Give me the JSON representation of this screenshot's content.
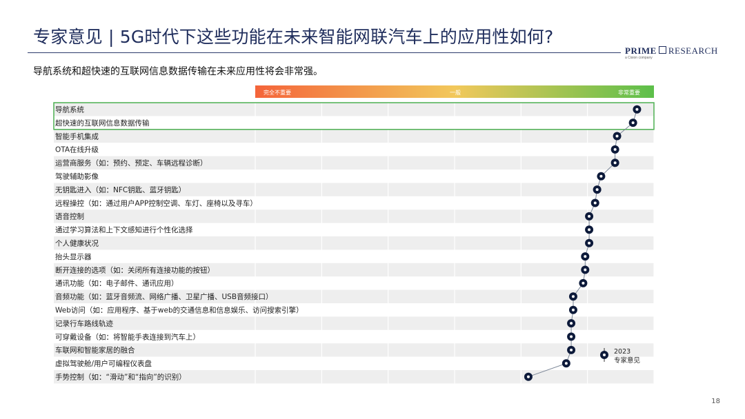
{
  "header": {
    "title": "专家意见 | 5G时代下这些功能在未来智能网联汽车上的应用性如何?",
    "subtitle": "导航系统和超快速的互联网信息数据传输在未来应用性将会非常强。",
    "brand_main_left": "PRIME",
    "brand_main_right": "RESEARCH",
    "brand_sub": "a Cision company",
    "page_number": "18"
  },
  "chart_data": {
    "type": "scatter",
    "scale_labels": [
      "完全不重要",
      "一般",
      "非常重要"
    ],
    "xlim": [
      1,
      5
    ],
    "grid": true,
    "highlighted_rows": [
      0,
      1
    ],
    "colors": {
      "scale_low": "#f4643a",
      "scale_mid": "#f2c85b",
      "scale_high": "#5cbf4a",
      "highlight_border": "#4caf50",
      "marker": "#0d1a3a",
      "marker_center": "#ffffff"
    },
    "legend": {
      "year": "2023",
      "label": "专家意见",
      "position": "bottom-right"
    },
    "series": [
      {
        "name": "专家意见"
      }
    ],
    "categories": [
      "导航系统",
      "超快速的互联网信息数据传输",
      "智能手机集成",
      "OTA在线升级",
      "运营商服务（如：预约、预定、车辆远程诊断）",
      "驾驶辅助影像",
      "无钥匙进入（如：NFC钥匙、蓝牙钥匙）",
      "远程操控（如：通过用户APP控制空调、车灯、座椅以及寻车）",
      "语音控制",
      "通过学习算法和上下文感知进行个性化选择",
      "个人健康状况",
      "抬头显示器",
      "断开连接的选项（如：关闭所有连接功能的按钮）",
      "通讯功能（如：电子邮件、通讯应用）",
      "音频功能（如：蓝牙音频流、网络广播、卫星广播、USB音频接口）",
      "Web访问（如：应用程序、基于web的交通信息和信息娱乐、访问搜索引擎）",
      "记录行车路线轨迹",
      "可穿戴设备（如：将智能手表连接到汽车上）",
      "车联网和智能家居的融合",
      "虚拟驾驶舱/用户可编程仪表盘",
      "手势控制（如：“滑动”和“指向”的识别）"
    ],
    "values": [
      4.83,
      4.79,
      4.63,
      4.61,
      4.61,
      4.47,
      4.43,
      4.41,
      4.35,
      4.35,
      4.35,
      4.31,
      4.31,
      4.29,
      4.19,
      4.19,
      4.17,
      4.17,
      4.17,
      4.12,
      3.74
    ]
  }
}
